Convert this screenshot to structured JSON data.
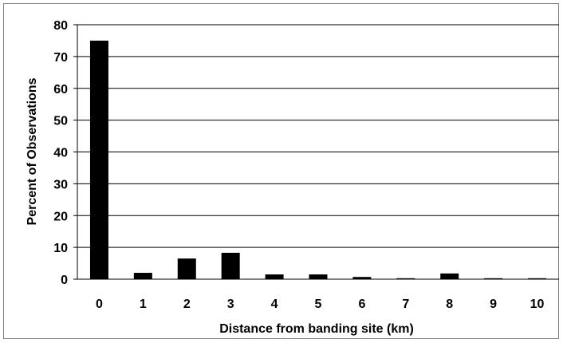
{
  "chart_data": {
    "type": "bar",
    "title": "",
    "xlabel": "Distance from banding site (km)",
    "ylabel": "Percent of Observations",
    "categories": [
      "0",
      "1",
      "2",
      "3",
      "4",
      "5",
      "6",
      "7",
      "8",
      "9",
      "10"
    ],
    "values": [
      75.0,
      2.0,
      6.5,
      8.3,
      1.5,
      1.5,
      0.7,
      0.3,
      1.8,
      0.3,
      0.3
    ],
    "ylim": [
      0,
      80
    ],
    "yticks": [
      "0",
      "10",
      "20",
      "30",
      "40",
      "50",
      "60",
      "70",
      "80"
    ],
    "grid": true,
    "legend": "none",
    "colors": {
      "bar": "#000000",
      "grid": "#000000",
      "frame": "#808080"
    }
  }
}
